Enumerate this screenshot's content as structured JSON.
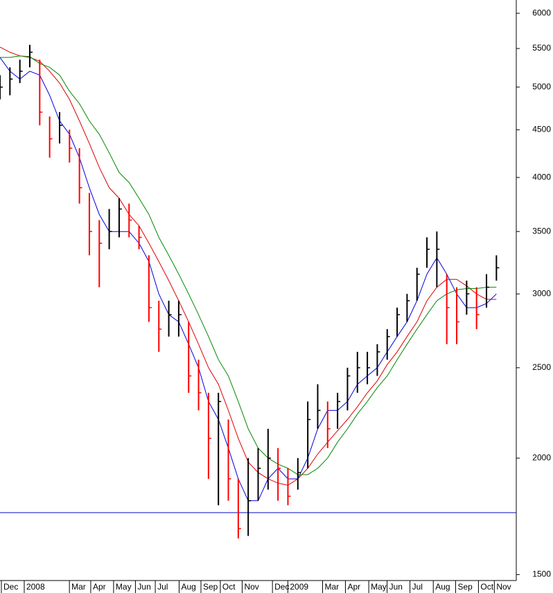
{
  "chart_data": {
    "type": "ohlc",
    "log": true,
    "xlim": [
      0,
      104
    ],
    "ylim": [
      1478,
      6200
    ],
    "yticks": [
      1500,
      2000,
      2500,
      3000,
      3500,
      4000,
      4500,
      5000,
      5500,
      6000
    ],
    "xticks": [
      {
        "value": 0.7,
        "label": "Dec"
      },
      {
        "value": 5.3,
        "label": "2008"
      },
      {
        "value": 14.4,
        "label": "Mar"
      },
      {
        "value": 18.7,
        "label": "Apr"
      },
      {
        "value": 23.3,
        "label": "May"
      },
      {
        "value": 27.7,
        "label": "Jun"
      },
      {
        "value": 31.7,
        "label": "Jul"
      },
      {
        "value": 36.5,
        "label": "Aug"
      },
      {
        "value": 40.9,
        "label": "Sep"
      },
      {
        "value": 44.8,
        "label": "Oct"
      },
      {
        "value": 49.2,
        "label": "Nov"
      },
      {
        "value": 55.3,
        "label": "Dec"
      },
      {
        "value": 58.4,
        "label": "2009"
      },
      {
        "value": 65.4,
        "label": "Mar"
      },
      {
        "value": 70,
        "label": "Apr"
      },
      {
        "value": 74.7,
        "label": "May"
      },
      {
        "value": 78.4,
        "label": "Jun"
      },
      {
        "value": 83,
        "label": "Jul"
      },
      {
        "value": 87.7,
        "label": "Aug"
      },
      {
        "value": 92.2,
        "label": "Sep"
      },
      {
        "value": 96.8,
        "label": "Oct"
      },
      {
        "value": 100,
        "label": "Nov"
      }
    ],
    "up_color": "#000000",
    "down_color": "#ff0000",
    "x": [
      0,
      2,
      4,
      6,
      8,
      10,
      12,
      14,
      16,
      18,
      20,
      22,
      24,
      26,
      28,
      30,
      32,
      34,
      36,
      38,
      40,
      42,
      44,
      46,
      48,
      50,
      52,
      54,
      56,
      58,
      60,
      62,
      64,
      66,
      68,
      70,
      72,
      74,
      76,
      78,
      80,
      82,
      84,
      86,
      88,
      90,
      92,
      94,
      96,
      98,
      100
    ],
    "high": [
      5150,
      5250,
      5350,
      5550,
      5350,
      4650,
      4700,
      4500,
      4300,
      3850,
      3600,
      3700,
      3800,
      3750,
      3550,
      3300,
      2950,
      2950,
      2950,
      2800,
      2550,
      2350,
      2350,
      2200,
      1900,
      2000,
      2050,
      2150,
      2050,
      1950,
      2000,
      2300,
      2400,
      2300,
      2350,
      2500,
      2600,
      2600,
      2650,
      2750,
      2900,
      3000,
      3200,
      3450,
      3500,
      3150,
      3050,
      3100,
      3050,
      3150,
      3300
    ],
    "low": [
      4850,
      4900,
      5050,
      5250,
      4550,
      4200,
      4350,
      4150,
      3750,
      3300,
      3050,
      3350,
      3450,
      3450,
      3350,
      2800,
      2600,
      2700,
      2700,
      2350,
      2250,
      1900,
      1780,
      1800,
      1640,
      1650,
      1800,
      1850,
      1800,
      1780,
      1850,
      1950,
      2150,
      2050,
      2150,
      2250,
      2350,
      2400,
      2450,
      2550,
      2700,
      2800,
      2950,
      3200,
      3050,
      2650,
      2650,
      2850,
      2750,
      2900,
      3100
    ],
    "close": [
      5000,
      5100,
      5200,
      5450,
      4700,
      4400,
      4550,
      4300,
      3900,
      3500,
      3400,
      3500,
      3700,
      3600,
      3450,
      2900,
      2750,
      2850,
      2850,
      2450,
      2350,
      2100,
      2300,
      1900,
      1680,
      1800,
      1950,
      2000,
      1950,
      1820,
      1930,
      2200,
      2250,
      2150,
      2300,
      2450,
      2500,
      2500,
      2600,
      2700,
      2850,
      2950,
      3150,
      3350,
      3350,
      2900,
      2800,
      3000,
      2850,
      3050,
      3200
    ],
    "moving_averages": [
      {
        "color": "#0000dd",
        "values": [
          5380,
          5200,
          5100,
          5200,
          5150,
          4900,
          4600,
          4450,
          4200,
          3900,
          3650,
          3500,
          3500,
          3500,
          3400,
          3250,
          3000,
          2850,
          2800,
          2650,
          2500,
          2300,
          2200,
          2050,
          1900,
          1800,
          1800,
          1900,
          1950,
          1900,
          1900,
          2000,
          2150,
          2250,
          2250,
          2300,
          2400,
          2450,
          2500,
          2600,
          2700,
          2800,
          2950,
          3150,
          3280,
          3150,
          3000,
          2900,
          2900,
          2930,
          3000
        ]
      },
      {
        "color": "#dd0000",
        "values": [
          5520,
          5450,
          5400,
          5380,
          5330,
          5200,
          5050,
          4850,
          4600,
          4350,
          4100,
          3900,
          3800,
          3650,
          3550,
          3400,
          3250,
          3100,
          2950,
          2800,
          2650,
          2500,
          2400,
          2250,
          2100,
          1980,
          1930,
          1900,
          1880,
          1870,
          1900,
          1950,
          2020,
          2080,
          2140,
          2200,
          2270,
          2350,
          2420,
          2520,
          2600,
          2700,
          2800,
          2950,
          3050,
          3110,
          3110,
          3060,
          3000,
          2960,
          2960
        ]
      },
      {
        "color": "#008800",
        "values": [
          5380,
          5380,
          5400,
          5390,
          5300,
          5250,
          5150,
          4950,
          4800,
          4600,
          4450,
          4250,
          4050,
          3950,
          3800,
          3650,
          3450,
          3300,
          3150,
          3000,
          2850,
          2700,
          2550,
          2450,
          2300,
          2150,
          2050,
          2000,
          1970,
          1950,
          1920,
          1920,
          1950,
          2000,
          2080,
          2150,
          2230,
          2300,
          2380,
          2450,
          2550,
          2650,
          2750,
          2850,
          2950,
          3000,
          3030,
          3040,
          3040,
          3050,
          3050
        ]
      }
    ],
    "reference_line": {
      "value": 1748,
      "color": "#0000cc"
    }
  }
}
